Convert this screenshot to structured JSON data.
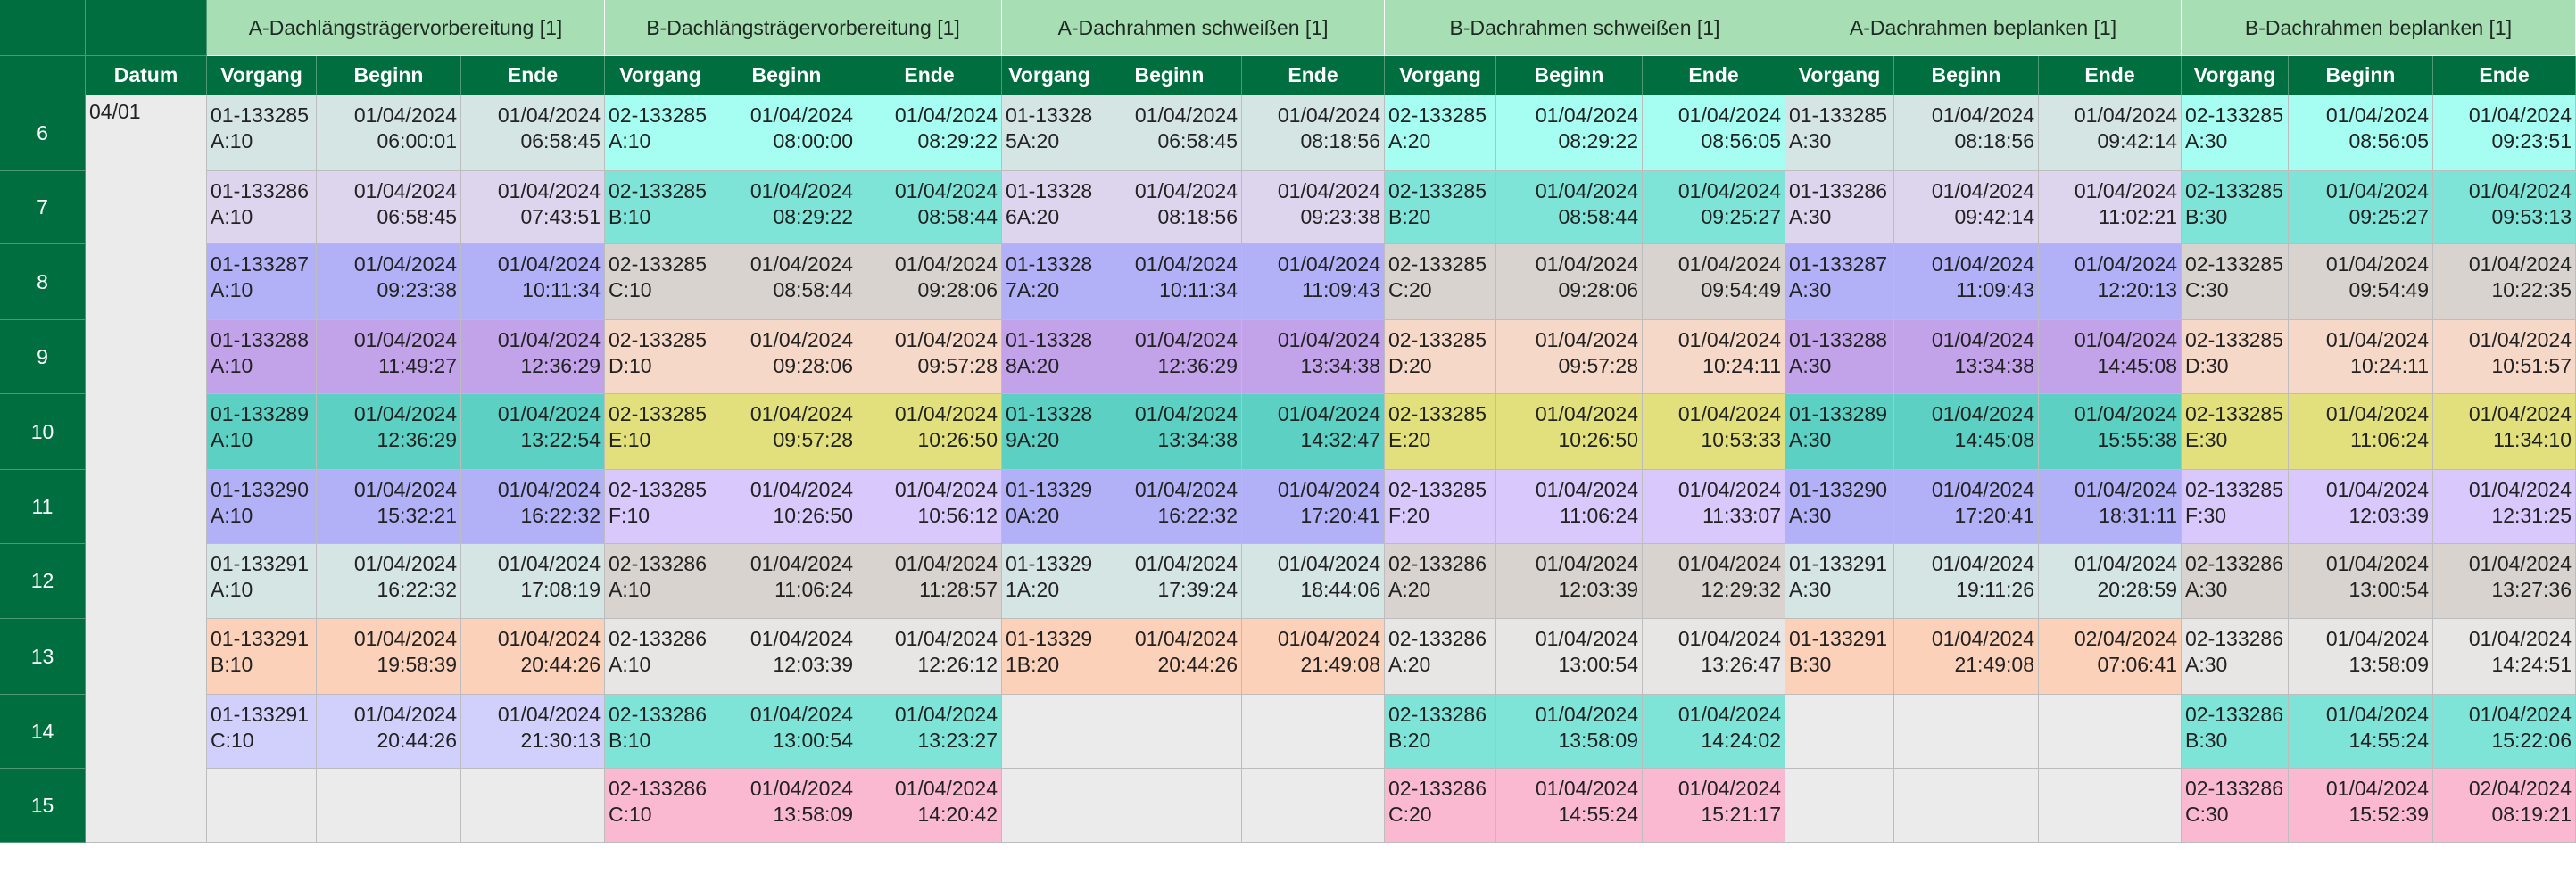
{
  "header": {
    "row_header_fill": "#006e3f",
    "group_fill": "#a8deb4",
    "groups": [
      "A-Dachlängsträgervorbereitung [1]",
      "B-Dachlängsträgervorbereitung [1]",
      "A-Dachrahmen schweißen [1]",
      "B-Dachrahmen schweißen [1]",
      "A-Dachrahmen beplanken [1]",
      "B-Dachrahmen beplanken [1]"
    ],
    "datum": "Datum",
    "sub_headers": [
      "Vorgang",
      "Beginn",
      "Ende"
    ]
  },
  "datum_value": "04/01",
  "empty_fill": "#ebebeb",
  "rows": [
    {
      "label": "6",
      "cells": [
        {
          "fill": "#d5e5e4",
          "v": [
            "01-133285\nA:10",
            "01/04/2024\n06:00:01",
            "01/04/2024\n06:58:45"
          ]
        },
        {
          "fill": "#a6fdf1",
          "v": [
            "02-133285\nA:10",
            "01/04/2024\n08:00:00",
            "01/04/2024\n08:29:22"
          ]
        },
        {
          "fill": "#d5e5e4",
          "v": [
            "01-13328\n5A:20",
            "01/04/2024\n06:58:45",
            "01/04/2024\n08:18:56"
          ]
        },
        {
          "fill": "#a6fdf1",
          "v": [
            "02-133285\nA:20",
            "01/04/2024\n08:29:22",
            "01/04/2024\n08:56:05"
          ]
        },
        {
          "fill": "#d5e5e4",
          "v": [
            "01-133285\nA:30",
            "01/04/2024\n08:18:56",
            "01/04/2024\n09:42:14"
          ]
        },
        {
          "fill": "#a6fdf1",
          "v": [
            "02-133285\nA:30",
            "01/04/2024\n08:56:05",
            "01/04/2024\n09:23:51"
          ]
        }
      ]
    },
    {
      "label": "7",
      "cells": [
        {
          "fill": "#ddd4ee",
          "v": [
            "01-133286\nA:10",
            "01/04/2024\n06:58:45",
            "01/04/2024\n07:43:51"
          ]
        },
        {
          "fill": "#7ee4d8",
          "v": [
            "02-133285\nB:10",
            "01/04/2024\n08:29:22",
            "01/04/2024\n08:58:44"
          ]
        },
        {
          "fill": "#ddd4ee",
          "v": [
            "01-13328\n6A:20",
            "01/04/2024\n08:18:56",
            "01/04/2024\n09:23:38"
          ]
        },
        {
          "fill": "#7ee4d8",
          "v": [
            "02-133285\nB:20",
            "01/04/2024\n08:58:44",
            "01/04/2024\n09:25:27"
          ]
        },
        {
          "fill": "#ddd4ee",
          "v": [
            "01-133286\nA:30",
            "01/04/2024\n09:42:14",
            "01/04/2024\n11:02:21"
          ]
        },
        {
          "fill": "#7ee4d8",
          "v": [
            "02-133285\nB:30",
            "01/04/2024\n09:25:27",
            "01/04/2024\n09:53:13"
          ]
        }
      ]
    },
    {
      "label": "8",
      "cells": [
        {
          "fill": "#b2b0f7",
          "v": [
            "01-133287\nA:10",
            "01/04/2024\n09:23:38",
            "01/04/2024\n10:11:34"
          ]
        },
        {
          "fill": "#d8d3cf",
          "v": [
            "02-133285\nC:10",
            "01/04/2024\n08:58:44",
            "01/04/2024\n09:28:06"
          ]
        },
        {
          "fill": "#b2b0f7",
          "v": [
            "01-13328\n7A:20",
            "01/04/2024\n10:11:34",
            "01/04/2024\n11:09:43"
          ]
        },
        {
          "fill": "#d8d3cf",
          "v": [
            "02-133285\nC:20",
            "01/04/2024\n09:28:06",
            "01/04/2024\n09:54:49"
          ]
        },
        {
          "fill": "#b2b0f7",
          "v": [
            "01-133287\nA:30",
            "01/04/2024\n11:09:43",
            "01/04/2024\n12:20:13"
          ]
        },
        {
          "fill": "#d8d3cf",
          "v": [
            "02-133285\nC:30",
            "01/04/2024\n09:54:49",
            "01/04/2024\n10:22:35"
          ]
        }
      ]
    },
    {
      "label": "9",
      "cells": [
        {
          "fill": "#c2a2e9",
          "v": [
            "01-133288\nA:10",
            "01/04/2024\n11:49:27",
            "01/04/2024\n12:36:29"
          ]
        },
        {
          "fill": "#f5d8c7",
          "v": [
            "02-133285\nD:10",
            "01/04/2024\n09:28:06",
            "01/04/2024\n09:57:28"
          ]
        },
        {
          "fill": "#c2a2e9",
          "v": [
            "01-13328\n8A:20",
            "01/04/2024\n12:36:29",
            "01/04/2024\n13:34:38"
          ]
        },
        {
          "fill": "#f5d8c7",
          "v": [
            "02-133285\nD:20",
            "01/04/2024\n09:57:28",
            "01/04/2024\n10:24:11"
          ]
        },
        {
          "fill": "#c2a2e9",
          "v": [
            "01-133288\nA:30",
            "01/04/2024\n13:34:38",
            "01/04/2024\n14:45:08"
          ]
        },
        {
          "fill": "#f5d8c7",
          "v": [
            "02-133285\nD:30",
            "01/04/2024\n10:24:11",
            "01/04/2024\n10:51:57"
          ]
        }
      ]
    },
    {
      "label": "10",
      "cells": [
        {
          "fill": "#5bd0c3",
          "v": [
            "01-133289\nA:10",
            "01/04/2024\n12:36:29",
            "01/04/2024\n13:22:54"
          ]
        },
        {
          "fill": "#e2e07d",
          "v": [
            "02-133285\nE:10",
            "01/04/2024\n09:57:28",
            "01/04/2024\n10:26:50"
          ]
        },
        {
          "fill": "#5bd0c3",
          "v": [
            "01-13328\n9A:20",
            "01/04/2024\n13:34:38",
            "01/04/2024\n14:32:47"
          ]
        },
        {
          "fill": "#e2e07d",
          "v": [
            "02-133285\nE:20",
            "01/04/2024\n10:26:50",
            "01/04/2024\n10:53:33"
          ]
        },
        {
          "fill": "#5bd0c3",
          "v": [
            "01-133289\nA:30",
            "01/04/2024\n14:45:08",
            "01/04/2024\n15:55:38"
          ]
        },
        {
          "fill": "#e2e07d",
          "v": [
            "02-133285\nE:30",
            "01/04/2024\n11:06:24",
            "01/04/2024\n11:34:10"
          ]
        }
      ]
    },
    {
      "label": "11",
      "cells": [
        {
          "fill": "#b2b0f7",
          "v": [
            "01-133290\nA:10",
            "01/04/2024\n15:32:21",
            "01/04/2024\n16:22:32"
          ]
        },
        {
          "fill": "#d9c8fb",
          "v": [
            "02-133285\nF:10",
            "01/04/2024\n10:26:50",
            "01/04/2024\n10:56:12"
          ]
        },
        {
          "fill": "#b2b0f7",
          "v": [
            "01-13329\n0A:20",
            "01/04/2024\n16:22:32",
            "01/04/2024\n17:20:41"
          ]
        },
        {
          "fill": "#d9c8fb",
          "v": [
            "02-133285\nF:20",
            "01/04/2024\n11:06:24",
            "01/04/2024\n11:33:07"
          ]
        },
        {
          "fill": "#b2b0f7",
          "v": [
            "01-133290\nA:30",
            "01/04/2024\n17:20:41",
            "01/04/2024\n18:31:11"
          ]
        },
        {
          "fill": "#d9c8fb",
          "v": [
            "02-133285\nF:30",
            "01/04/2024\n12:03:39",
            "01/04/2024\n12:31:25"
          ]
        }
      ]
    },
    {
      "label": "12",
      "cells": [
        {
          "fill": "#d5e5e4",
          "v": [
            "01-133291\nA:10",
            "01/04/2024\n16:22:32",
            "01/04/2024\n17:08:19"
          ]
        },
        {
          "fill": "#d8d3cf",
          "v": [
            "02-133286\nA:10",
            "01/04/2024\n11:06:24",
            "01/04/2024\n11:28:57"
          ]
        },
        {
          "fill": "#d5e5e4",
          "v": [
            "01-13329\n1A:20",
            "01/04/2024\n17:39:24",
            "01/04/2024\n18:44:06"
          ]
        },
        {
          "fill": "#d8d3cf",
          "v": [
            "02-133286\nA:20",
            "01/04/2024\n12:03:39",
            "01/04/2024\n12:29:32"
          ]
        },
        {
          "fill": "#d5e5e4",
          "v": [
            "01-133291\nA:30",
            "01/04/2024\n19:11:26",
            "01/04/2024\n20:28:59"
          ]
        },
        {
          "fill": "#d8d3cf",
          "v": [
            "02-133286\nA:30",
            "01/04/2024\n13:00:54",
            "01/04/2024\n13:27:36"
          ]
        }
      ]
    },
    {
      "label": "13",
      "cells": [
        {
          "fill": "#fcd1b9",
          "v": [
            "01-133291\nB:10",
            "01/04/2024\n19:58:39",
            "01/04/2024\n20:44:26"
          ]
        },
        {
          "fill": "#e8e5e5",
          "v": [
            "02-133286\nA:10",
            "01/04/2024\n12:03:39",
            "01/04/2024\n12:26:12"
          ]
        },
        {
          "fill": "#fcd1b9",
          "v": [
            "01-13329\n1B:20",
            "01/04/2024\n20:44:26",
            "01/04/2024\n21:49:08"
          ]
        },
        {
          "fill": "#e8e5e5",
          "v": [
            "02-133286\nA:20",
            "01/04/2024\n13:00:54",
            "01/04/2024\n13:26:47"
          ]
        },
        {
          "fill": "#fcd1b9",
          "v": [
            "01-133291\nB:30",
            "01/04/2024\n21:49:08",
            "02/04/2024\n07:06:41"
          ]
        },
        {
          "fill": "#e8e5e5",
          "v": [
            "02-133286\nA:30",
            "01/04/2024\n13:58:09",
            "01/04/2024\n14:24:51"
          ]
        }
      ]
    },
    {
      "label": "14",
      "cells": [
        {
          "fill": "#d1cffb",
          "v": [
            "01-133291\nC:10",
            "01/04/2024\n20:44:26",
            "01/04/2024\n21:30:13"
          ]
        },
        {
          "fill": "#7ee4d8",
          "v": [
            "02-133286\nB:10",
            "01/04/2024\n13:00:54",
            "01/04/2024\n13:23:27"
          ]
        },
        null,
        {
          "fill": "#7ee4d8",
          "v": [
            "02-133286\nB:20",
            "01/04/2024\n13:58:09",
            "01/04/2024\n14:24:02"
          ]
        },
        null,
        {
          "fill": "#7ee4d8",
          "v": [
            "02-133286\nB:30",
            "01/04/2024\n14:55:24",
            "01/04/2024\n15:22:06"
          ]
        }
      ]
    },
    {
      "label": "15",
      "cells": [
        null,
        {
          "fill": "#fbb9d1",
          "v": [
            "02-133286\nC:10",
            "01/04/2024\n13:58:09",
            "01/04/2024\n14:20:42"
          ]
        },
        null,
        {
          "fill": "#fbb9d1",
          "v": [
            "02-133286\nC:20",
            "01/04/2024\n14:55:24",
            "01/04/2024\n15:21:17"
          ]
        },
        null,
        {
          "fill": "#fbb9d1",
          "v": [
            "02-133286\nC:30",
            "01/04/2024\n15:52:39",
            "02/04/2024\n08:19:21"
          ]
        }
      ]
    }
  ]
}
